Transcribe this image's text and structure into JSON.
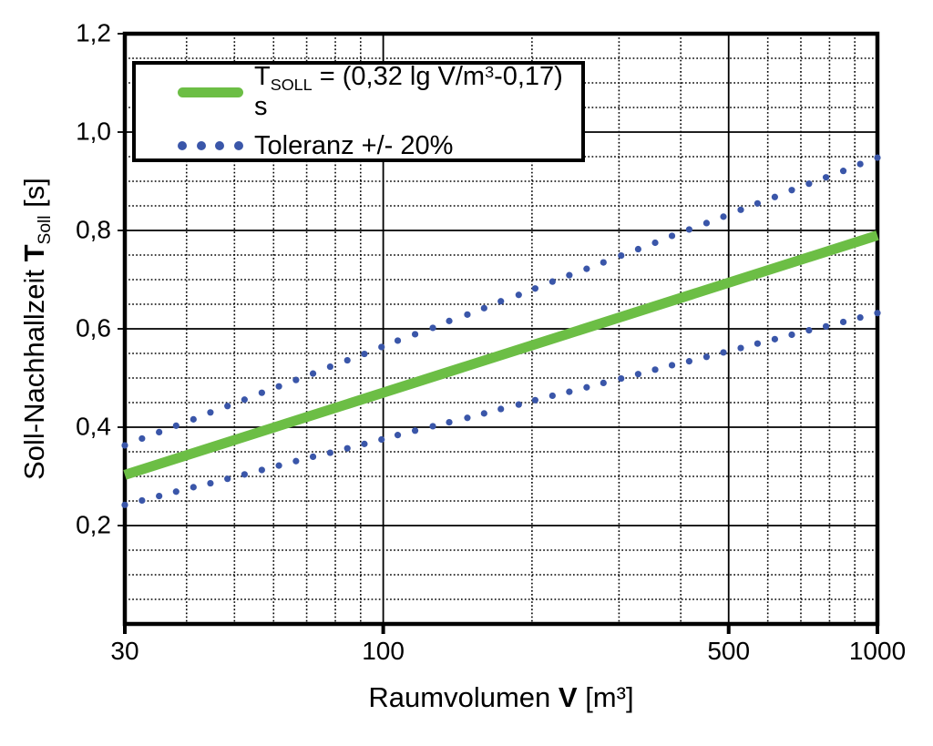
{
  "chart_data": {
    "type": "line",
    "title": "",
    "xlabel": {
      "prefix": "Raumvolumen ",
      "var": "V",
      "suffix": " [m³]"
    },
    "ylabel": {
      "prefix": "Soll-Nachhallzeit ",
      "var": "T",
      "var_sub": "Soll",
      "suffix": " [s]"
    },
    "x_axis": {
      "scale": "log",
      "min": 30,
      "max": 1000,
      "grid": true,
      "ticks": [
        {
          "value": 30,
          "label": "30"
        },
        {
          "value": 100,
          "label": "100"
        },
        {
          "value": 500,
          "label": "500"
        },
        {
          "value": 1000,
          "label": "1000"
        }
      ],
      "minor_ticks": [
        40,
        50,
        60,
        70,
        80,
        90,
        200,
        300,
        400,
        600,
        700,
        800,
        900
      ]
    },
    "y_axis": {
      "scale": "linear",
      "min": 0,
      "max": 1.2,
      "minor_step": 0.05,
      "grid": true,
      "ticks": [
        {
          "value": 0.2,
          "label": "0,2"
        },
        {
          "value": 0.4,
          "label": "0,4"
        },
        {
          "value": 0.6,
          "label": "0,6"
        },
        {
          "value": 0.8,
          "label": "0,8"
        },
        {
          "value": 1.0,
          "label": "1,0"
        },
        {
          "value": 1.2,
          "label": "1,2"
        }
      ]
    },
    "series": [
      {
        "id": "tsoll",
        "name": "T_SOLL = (0,32 lg V/m³-0,17) s",
        "type": "line",
        "color": "#6cbe45",
        "stroke_width": 11,
        "x": [
          30,
          1000
        ],
        "y": [
          0.303,
          0.79
        ]
      },
      {
        "id": "tolerance-upper",
        "name": "Toleranz +20%",
        "type": "dots",
        "color": "#3a56a9",
        "radius": 3.6,
        "x": [
          30,
          32.5,
          35.2,
          38.1,
          41.3,
          44.7,
          48.4,
          52.4,
          56.8,
          61.5,
          66.6,
          72.1,
          78.1,
          84.6,
          91.6,
          99.2,
          107,
          116,
          126,
          136,
          148,
          160,
          173,
          188,
          203,
          220,
          238,
          258,
          279,
          303,
          328,
          355,
          384,
          416,
          451,
          488,
          529,
          572,
          620,
          671,
          727,
          787,
          853,
          923,
          1000
        ],
        "y": [
          0.363,
          0.377,
          0.39,
          0.403,
          0.416,
          0.43,
          0.443,
          0.456,
          0.47,
          0.483,
          0.496,
          0.509,
          0.523,
          0.536,
          0.549,
          0.563,
          0.576,
          0.589,
          0.602,
          0.616,
          0.629,
          0.642,
          0.656,
          0.669,
          0.682,
          0.696,
          0.709,
          0.722,
          0.735,
          0.749,
          0.762,
          0.775,
          0.789,
          0.802,
          0.815,
          0.828,
          0.842,
          0.855,
          0.868,
          0.882,
          0.895,
          0.908,
          0.921,
          0.935,
          0.948
        ]
      },
      {
        "id": "tolerance-lower",
        "name": "Toleranz -20%",
        "type": "dots",
        "color": "#3a56a9",
        "radius": 3.6,
        "x": [
          30,
          32.5,
          35.2,
          38.1,
          41.3,
          44.7,
          48.4,
          52.4,
          56.8,
          61.5,
          66.6,
          72.1,
          78.1,
          84.6,
          91.6,
          99.2,
          107,
          116,
          126,
          136,
          148,
          160,
          173,
          188,
          203,
          220,
          238,
          258,
          279,
          303,
          328,
          355,
          384,
          416,
          451,
          488,
          529,
          572,
          620,
          671,
          727,
          787,
          853,
          923,
          1000
        ],
        "y": [
          0.242,
          0.251,
          0.26,
          0.269,
          0.278,
          0.286,
          0.295,
          0.304,
          0.313,
          0.322,
          0.331,
          0.34,
          0.348,
          0.357,
          0.366,
          0.375,
          0.384,
          0.393,
          0.402,
          0.41,
          0.419,
          0.428,
          0.437,
          0.446,
          0.455,
          0.464,
          0.472,
          0.481,
          0.49,
          0.499,
          0.508,
          0.517,
          0.526,
          0.534,
          0.543,
          0.552,
          0.561,
          0.57,
          0.579,
          0.588,
          0.597,
          0.605,
          0.614,
          0.623,
          0.632
        ]
      }
    ],
    "legend": {
      "position": "top-left",
      "tsoll": {
        "t": "T",
        "t_sub": "SOLL",
        "mid": " = (0,32 lg V/m",
        "sup": "3",
        "tail": "-0,17) s"
      },
      "tolerance": "Toleranz +/- 20%"
    },
    "colors": {
      "line": "#6cbe45",
      "dots": "#3a56a9",
      "grid": "#000000",
      "frame": "#000000",
      "background": "#ffffff"
    }
  }
}
